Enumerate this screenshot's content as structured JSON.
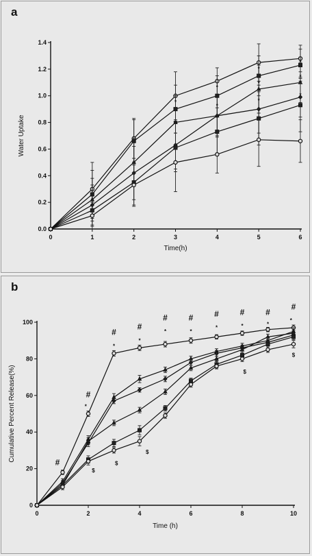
{
  "chart_data": [
    {
      "panel_label": "a",
      "type": "line",
      "xlabel": "Time(h)",
      "ylabel": "Water Uptake",
      "x": [
        0,
        1,
        2,
        3,
        4,
        5,
        6
      ],
      "xlim": [
        0,
        6
      ],
      "ylim": [
        0,
        1.4
      ],
      "xticks": [
        "0",
        "1",
        "2",
        "3",
        "4",
        "5",
        "6"
      ],
      "yticks": [
        "0.0",
        "0.2",
        "0.4",
        "0.6",
        "0.8",
        "1.0",
        "1.2",
        "1.4"
      ],
      "grid": false,
      "series": [
        {
          "values": [
            0,
            0.3,
            0.68,
            1.0,
            1.11,
            1.25,
            1.28
          ],
          "errors": [
            0,
            0.2,
            0.15,
            0.18,
            0.1,
            0.14,
            0.1
          ],
          "marker": "circle"
        },
        {
          "values": [
            0,
            0.26,
            0.66,
            0.9,
            1.0,
            1.15,
            1.23
          ],
          "errors": [
            0,
            0.18,
            0.16,
            0.18,
            0.15,
            0.15,
            0.12
          ],
          "marker": "square"
        },
        {
          "values": [
            0,
            0.22,
            0.5,
            0.8,
            0.85,
            1.05,
            1.1
          ],
          "errors": [
            0,
            0.16,
            0.18,
            0.2,
            0.15,
            0.18,
            0.15
          ],
          "marker": "triangle"
        },
        {
          "values": [
            0,
            0.18,
            0.42,
            0.63,
            0.85,
            0.9,
            0.99
          ],
          "errors": [
            0,
            0.15,
            0.2,
            0.18,
            0.16,
            0.18,
            0.15
          ],
          "marker": "diamond"
        },
        {
          "values": [
            0,
            0.14,
            0.35,
            0.61,
            0.73,
            0.83,
            0.93
          ],
          "errors": [
            0,
            0.12,
            0.18,
            0.18,
            0.18,
            0.2,
            0.2
          ],
          "marker": "square"
        },
        {
          "values": [
            0,
            0.1,
            0.33,
            0.5,
            0.56,
            0.67,
            0.66
          ],
          "errors": [
            0,
            0.1,
            0.15,
            0.22,
            0.14,
            0.2,
            0.16
          ],
          "marker": "circle"
        }
      ],
      "annotations": [
        {
          "text": "*",
          "x": 3,
          "y": 0.94
        },
        {
          "text": "**",
          "x": 3,
          "y": 0.78
        },
        {
          "text": "*",
          "x": 4,
          "y": 1.05
        },
        {
          "text": "*",
          "x": 4,
          "y": 0.91
        },
        {
          "text": "*",
          "x": 5,
          "y": 1.19
        },
        {
          "text": "*",
          "x": 5,
          "y": 1.08
        },
        {
          "text": "*",
          "x": 5,
          "y": 0.95
        },
        {
          "text": "*",
          "x": 6,
          "y": 1.24
        },
        {
          "text": "*",
          "x": 6,
          "y": 1.13
        },
        {
          "text": "*",
          "x": 6,
          "y": 0.99
        }
      ]
    },
    {
      "panel_label": "b",
      "type": "line",
      "xlabel": "Time (h)",
      "ylabel": "Cumulative Percent Release(%)",
      "x": [
        0,
        1,
        2,
        3,
        4,
        5,
        6,
        7,
        8,
        9,
        10
      ],
      "xlim": [
        0,
        10
      ],
      "ylim": [
        0,
        100
      ],
      "xticks": [
        "0",
        "2",
        "4",
        "6",
        "8",
        "10"
      ],
      "yticks": [
        "0",
        "20",
        "40",
        "60",
        "80",
        "100"
      ],
      "grid": false,
      "series": [
        {
          "values": [
            0,
            18,
            50,
            83,
            86,
            88,
            90,
            92,
            94,
            96,
            97
          ],
          "errors": [
            0,
            1.2,
            1.5,
            1.5,
            1.5,
            1.5,
            1.5,
            1.2,
            1.2,
            1.2,
            1.5
          ],
          "marker": "circle"
        },
        {
          "values": [
            0,
            13,
            36,
            59,
            69,
            74,
            80,
            84,
            87,
            90,
            95
          ],
          "errors": [
            0,
            1.5,
            2,
            2,
            2,
            1.5,
            1.5,
            1.5,
            1.5,
            1.5,
            2
          ],
          "marker": "triangle"
        },
        {
          "values": [
            0,
            12,
            34,
            57,
            63,
            69,
            78,
            83,
            86,
            89,
            93
          ],
          "errors": [
            0,
            1.5,
            2,
            1.5,
            1.2,
            1.5,
            1.5,
            1.5,
            1.5,
            1.5,
            1.5
          ],
          "marker": "diamond"
        },
        {
          "values": [
            0,
            11,
            35,
            45,
            52,
            62,
            75,
            80,
            85,
            92,
            94
          ],
          "errors": [
            0,
            1.5,
            2,
            1.5,
            1.5,
            1.5,
            1.5,
            1.5,
            1.5,
            1.5,
            1.5
          ],
          "marker": "triangle"
        },
        {
          "values": [
            0,
            11,
            25,
            34,
            41,
            53,
            68,
            77,
            82,
            88,
            92
          ],
          "errors": [
            0,
            1.5,
            2,
            2,
            2.5,
            1.5,
            1.5,
            2,
            1.5,
            1.5,
            1.5
          ],
          "marker": "square"
        },
        {
          "values": [
            0,
            10,
            24,
            30,
            35,
            49,
            66,
            76,
            80,
            85,
            88
          ],
          "errors": [
            0,
            1.5,
            2,
            1.5,
            2.5,
            1.5,
            1.5,
            1.5,
            1.5,
            1.5,
            2
          ],
          "marker": "circle"
        }
      ],
      "annotations": [
        {
          "text": "#",
          "x": 0.8,
          "y": 22,
          "size": "lg"
        },
        {
          "text": "#",
          "x": 2.0,
          "y": 59,
          "size": "lg"
        },
        {
          "text": "*",
          "x": 1.9,
          "y": 53
        },
        {
          "text": "#",
          "x": 3.0,
          "y": 93,
          "size": "lg"
        },
        {
          "text": "*",
          "x": 3.0,
          "y": 86
        },
        {
          "text": "#",
          "x": 4.0,
          "y": 96,
          "size": "lg"
        },
        {
          "text": "*",
          "x": 4.0,
          "y": 89
        },
        {
          "text": "#",
          "x": 5.0,
          "y": 101,
          "size": "lg"
        },
        {
          "text": "*",
          "x": 5.0,
          "y": 94
        },
        {
          "text": "#",
          "x": 6.0,
          "y": 101,
          "size": "lg"
        },
        {
          "text": "*",
          "x": 6.0,
          "y": 94
        },
        {
          "text": "#",
          "x": 7.0,
          "y": 103,
          "size": "lg"
        },
        {
          "text": "*",
          "x": 7.0,
          "y": 96
        },
        {
          "text": "#",
          "x": 8.0,
          "y": 104,
          "size": "lg"
        },
        {
          "text": "*",
          "x": 8.0,
          "y": 97
        },
        {
          "text": "#",
          "x": 9.0,
          "y": 104,
          "size": "lg"
        },
        {
          "text": "*",
          "x": 9.0,
          "y": 98
        },
        {
          "text": "#",
          "x": 10.0,
          "y": 107,
          "size": "lg"
        },
        {
          "text": "*",
          "x": 9.9,
          "y": 100
        },
        {
          "text": "$",
          "x": 2.2,
          "y": 18
        },
        {
          "text": "$",
          "x": 3.1,
          "y": 22
        },
        {
          "text": "$",
          "x": 4.3,
          "y": 28
        },
        {
          "text": "$",
          "x": 8.1,
          "y": 72
        },
        {
          "text": "$",
          "x": 10.0,
          "y": 81
        }
      ]
    }
  ]
}
